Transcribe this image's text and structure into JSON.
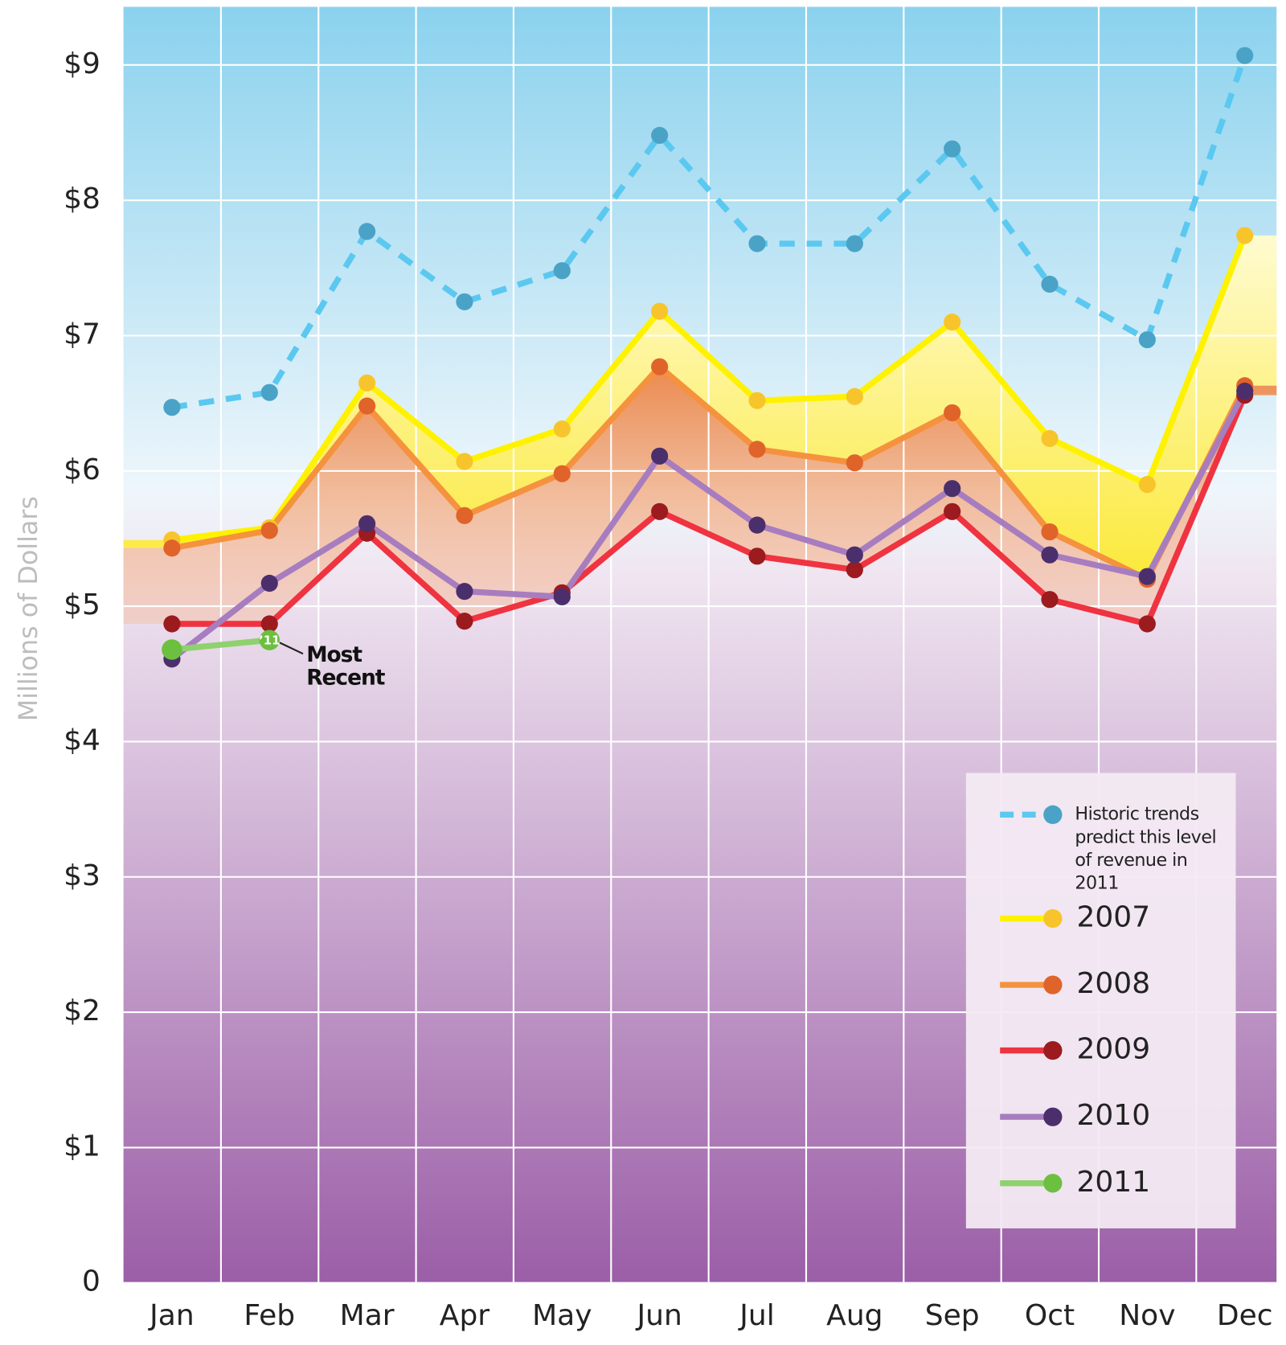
{
  "chart_data": {
    "type": "line",
    "y_label": "Millions of Dollars",
    "categories": [
      "Jan",
      "Feb",
      "Mar",
      "Apr",
      "May",
      "Jun",
      "Jul",
      "Aug",
      "Sep",
      "Oct",
      "Nov",
      "Dec"
    ],
    "ylim": [
      0,
      9.43
    ],
    "yticks": [
      0,
      {
        "value": 1,
        "label": "$1"
      },
      {
        "value": 2,
        "label": "$2"
      },
      {
        "value": 3,
        "label": "$3"
      },
      {
        "value": 4,
        "label": "$4"
      },
      {
        "value": 5,
        "label": "$5"
      },
      {
        "value": 6,
        "label": "$6"
      },
      {
        "value": 7,
        "label": "$7"
      },
      {
        "value": 8,
        "label": "$8"
      },
      {
        "value": 9,
        "label": "$9"
      }
    ],
    "grid": true,
    "legend": "lower right",
    "series": [
      {
        "name": "Historic trends predict this level of revenue in 2011",
        "color": "#5bc8f0",
        "marker_color": "#4aa3c7",
        "dashed": true,
        "values": [
          6.47,
          6.58,
          7.77,
          7.25,
          7.48,
          8.48,
          7.68,
          7.68,
          8.38,
          7.38,
          6.97,
          9.07
        ]
      },
      {
        "name": "2007",
        "color": "#fff200",
        "marker_color": "#f7c52b",
        "values": [
          5.49,
          5.58,
          6.65,
          6.07,
          6.31,
          7.18,
          6.52,
          6.55,
          7.1,
          6.24,
          5.9,
          7.74
        ]
      },
      {
        "name": "2008",
        "color": "#f5923e",
        "marker_color": "#e0632a",
        "values": [
          5.43,
          5.56,
          6.48,
          5.67,
          5.98,
          6.77,
          6.16,
          6.06,
          6.43,
          5.55,
          5.2,
          6.63
        ]
      },
      {
        "name": "2009",
        "color": "#ef3340",
        "marker_color": "#9b1b1f",
        "values": [
          4.87,
          4.87,
          5.54,
          4.89,
          5.1,
          5.7,
          5.37,
          5.27,
          5.7,
          5.05,
          4.87,
          6.56
        ]
      },
      {
        "name": "2010",
        "color": "#a77dbf",
        "marker_color": "#4b2f6d",
        "values": [
          4.61,
          5.17,
          5.61,
          5.11,
          5.07,
          6.11,
          5.6,
          5.38,
          5.87,
          5.38,
          5.22,
          6.59
        ]
      },
      {
        "name": "2011",
        "color": "#8fd16e",
        "marker_color": "#6cbf3f",
        "values": [
          4.68,
          4.75,
          null,
          null,
          null,
          null,
          null,
          null,
          null,
          null,
          null,
          null
        ]
      }
    ],
    "point_label": "’11",
    "annotation_lines": [
      "Most",
      "Recent"
    ]
  }
}
